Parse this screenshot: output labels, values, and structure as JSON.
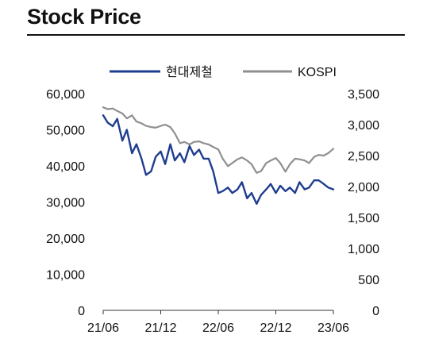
{
  "page": {
    "title": "Stock Price"
  },
  "chart_data": {
    "type": "line",
    "title": "Stock Price",
    "legend": {
      "placement": "top"
    },
    "grid": false,
    "x_ticks": [
      "21/06",
      "21/12",
      "22/06",
      "22/12",
      "23/06"
    ],
    "x_range": [
      "2021-06",
      "2023-06"
    ],
    "y_left": {
      "range": [
        0,
        60000
      ],
      "ticks": [
        0,
        10000,
        20000,
        30000,
        40000,
        50000,
        60000
      ],
      "tick_labels": [
        "0",
        "10,000",
        "20,000",
        "30,000",
        "40,000",
        "50,000",
        "60,000"
      ]
    },
    "y_right": {
      "range": [
        0,
        3500
      ],
      "ticks": [
        0,
        500,
        1000,
        1500,
        2000,
        2500,
        3000,
        3500
      ],
      "tick_labels": [
        "0",
        "500",
        "1,000",
        "1,500",
        "2,000",
        "2,500",
        "3,000",
        "3,500"
      ]
    },
    "series": [
      {
        "name": "현대제철",
        "axis": "left",
        "color": "#1f3d8f",
        "x": [
          "2021-06-01",
          "2021-06-15",
          "2021-07-01",
          "2021-07-15",
          "2021-08-01",
          "2021-08-15",
          "2021-09-01",
          "2021-09-15",
          "2021-10-01",
          "2021-10-15",
          "2021-11-01",
          "2021-11-15",
          "2021-12-01",
          "2021-12-15",
          "2022-01-01",
          "2022-01-15",
          "2022-02-01",
          "2022-02-15",
          "2022-03-01",
          "2022-03-15",
          "2022-04-01",
          "2022-04-15",
          "2022-05-01",
          "2022-05-15",
          "2022-06-01",
          "2022-06-15",
          "2022-07-01",
          "2022-07-15",
          "2022-08-01",
          "2022-08-15",
          "2022-09-01",
          "2022-09-15",
          "2022-10-01",
          "2022-10-15",
          "2022-11-01",
          "2022-11-15",
          "2022-12-01",
          "2022-12-15",
          "2023-01-01",
          "2023-01-15",
          "2023-02-01",
          "2023-02-15",
          "2023-03-01",
          "2023-03-15",
          "2023-04-01",
          "2023-04-15",
          "2023-05-01",
          "2023-05-15",
          "2023-06-01"
        ],
        "values": [
          54000,
          52000,
          51000,
          53000,
          47000,
          50000,
          43500,
          46000,
          42000,
          37500,
          38500,
          42500,
          44000,
          40500,
          46000,
          41500,
          43500,
          41000,
          45500,
          43000,
          44500,
          42000,
          42000,
          38500,
          32500,
          33000,
          34000,
          32500,
          33500,
          35500,
          31000,
          32500,
          29500,
          32000,
          33500,
          35000,
          32500,
          34500,
          33000,
          34000,
          32500,
          35500,
          33500,
          34000,
          36000,
          36000,
          35000,
          34000,
          33500
        ]
      },
      {
        "name": "KOSPI",
        "axis": "right",
        "color": "#8f8f8f",
        "x": [
          "2021-06-01",
          "2021-06-15",
          "2021-07-01",
          "2021-07-15",
          "2021-08-01",
          "2021-08-15",
          "2021-09-01",
          "2021-09-15",
          "2021-10-01",
          "2021-10-15",
          "2021-11-01",
          "2021-11-15",
          "2021-12-01",
          "2021-12-15",
          "2022-01-01",
          "2022-01-15",
          "2022-02-01",
          "2022-02-15",
          "2022-03-01",
          "2022-03-15",
          "2022-04-01",
          "2022-04-15",
          "2022-05-01",
          "2022-05-15",
          "2022-06-01",
          "2022-06-15",
          "2022-07-01",
          "2022-07-15",
          "2022-08-01",
          "2022-08-15",
          "2022-09-01",
          "2022-09-15",
          "2022-10-01",
          "2022-10-15",
          "2022-11-01",
          "2022-11-15",
          "2022-12-01",
          "2022-12-15",
          "2023-01-01",
          "2023-01-15",
          "2023-02-01",
          "2023-02-15",
          "2023-03-01",
          "2023-03-15",
          "2023-04-01",
          "2023-04-15",
          "2023-05-01",
          "2023-05-15",
          "2023-06-01"
        ],
        "values": [
          3280,
          3250,
          3260,
          3220,
          3180,
          3100,
          3150,
          3050,
          3020,
          2980,
          2960,
          2950,
          2980,
          3000,
          2960,
          2860,
          2700,
          2720,
          2680,
          2720,
          2730,
          2700,
          2680,
          2640,
          2600,
          2450,
          2330,
          2380,
          2440,
          2470,
          2420,
          2360,
          2220,
          2250,
          2380,
          2420,
          2460,
          2380,
          2240,
          2360,
          2450,
          2440,
          2420,
          2380,
          2480,
          2510,
          2500,
          2540,
          2610
        ]
      }
    ]
  }
}
